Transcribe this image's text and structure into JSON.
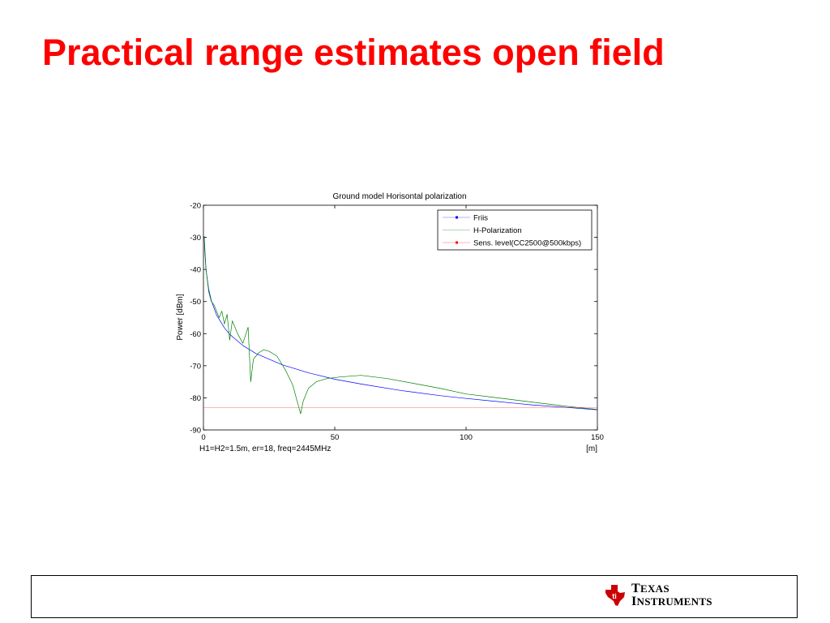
{
  "slide": {
    "title": "Practical range estimates open field"
  },
  "chart_data": {
    "type": "line",
    "title": "Ground model Horisontal polarization",
    "xlabel": "[m]",
    "ylabel": "Power [dBm]",
    "annotation": "H1=H2=1.5m, er=18, freq=2445MHz",
    "xlim": [
      0,
      150
    ],
    "ylim": [
      -90,
      -20
    ],
    "xticks": [
      0,
      50,
      100,
      150
    ],
    "yticks": [
      -20,
      -30,
      -40,
      -50,
      -60,
      -70,
      -80,
      -90
    ],
    "grid": false,
    "legend_position": "top-right",
    "series": [
      {
        "name": "Friis",
        "color": "#0000ff",
        "x": [
          0.3,
          0.5,
          1,
          2,
          3,
          5,
          8,
          10,
          15,
          20,
          30,
          40,
          50,
          60,
          75,
          90,
          100,
          110,
          125,
          140,
          150
        ],
        "y": [
          -29.7,
          -34.2,
          -40.2,
          -46.2,
          -49.7,
          -54.2,
          -58.2,
          -60.2,
          -63.7,
          -66.2,
          -69.7,
          -72.2,
          -74.2,
          -75.7,
          -77.7,
          -79.3,
          -80.2,
          -81.0,
          -82.2,
          -83.1,
          -83.7
        ]
      },
      {
        "name": "H-Polarization",
        "color": "#008000",
        "x": [
          0.3,
          1,
          2,
          3,
          4,
          5,
          6,
          7,
          8,
          9,
          10,
          11,
          12,
          13,
          15,
          17,
          18,
          19,
          21,
          23,
          25,
          28,
          31,
          34,
          36,
          37,
          38,
          40,
          43,
          47,
          52,
          60,
          70,
          80,
          90,
          100,
          110,
          120,
          130,
          140,
          150
        ],
        "y": [
          -30,
          -40,
          -47,
          -50,
          -51,
          -53,
          -55,
          -53,
          -57,
          -54,
          -62,
          -56,
          -58,
          -60,
          -63,
          -58,
          -75,
          -68,
          -66,
          -65,
          -65.5,
          -67,
          -71,
          -76,
          -82,
          -85,
          -81,
          -77,
          -75,
          -74,
          -73.5,
          -73,
          -74,
          -75.5,
          -77,
          -78.8,
          -79.8,
          -80.8,
          -81.8,
          -82.8,
          -83.6
        ]
      },
      {
        "name": "Sens. level(CC2500@500kbps)",
        "color": "#ff0000",
        "x": [
          0,
          150
        ],
        "y": [
          -83,
          -83
        ]
      }
    ]
  },
  "footer": {
    "logo_line1_cap": "T",
    "logo_line1_rest": "EXAS",
    "logo_line2_cap": "I",
    "logo_line2_rest": "NSTRUMENTS",
    "logo_color": "#cc0000"
  }
}
